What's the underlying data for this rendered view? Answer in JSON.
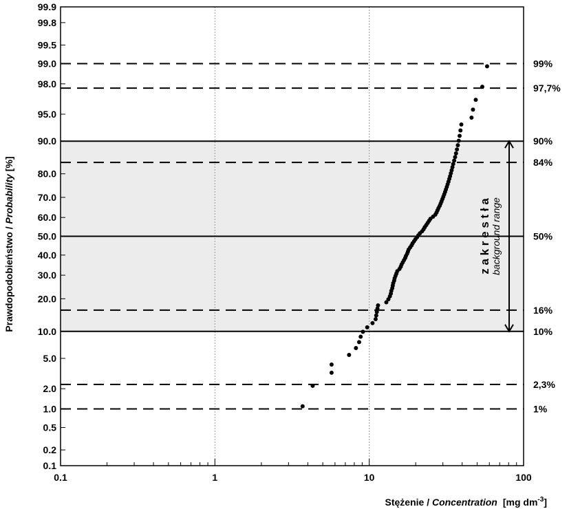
{
  "chart_data": {
    "type": "scatter",
    "xlabel_plain": "Stężenie / ",
    "xlabel_italic": "Concentration",
    "xlabel_unit": "[mg dm",
    "xlabel_unit_sup": "-3",
    "xlabel_unit_end": "]",
    "ylabel_plain": "Prawdopodobieństwo / ",
    "ylabel_italic": "Probability",
    "ylabel_unit": " [%]",
    "x_scale": "log",
    "y_scale": "probability",
    "xlim": [
      0.1,
      100
    ],
    "ylim": [
      0.1,
      99.9
    ],
    "x_ticks": [
      {
        "value": 0.1,
        "label": "0.1"
      },
      {
        "value": 1,
        "label": "1"
      },
      {
        "value": 10,
        "label": "10"
      },
      {
        "value": 100,
        "label": "100"
      }
    ],
    "y_ticks": [
      {
        "value": 0.1,
        "label": "0.1"
      },
      {
        "value": 0.2,
        "label": "0.2"
      },
      {
        "value": 0.5,
        "label": "0.5"
      },
      {
        "value": 1,
        "label": "1.0"
      },
      {
        "value": 2,
        "label": "2.0"
      },
      {
        "value": 5,
        "label": "5.0"
      },
      {
        "value": 10,
        "label": "10.0"
      },
      {
        "value": 20,
        "label": "20.0"
      },
      {
        "value": 30,
        "label": "30.0"
      },
      {
        "value": 40,
        "label": "40.0"
      },
      {
        "value": 50,
        "label": "50.0"
      },
      {
        "value": 60,
        "label": "60.0"
      },
      {
        "value": 70,
        "label": "70.0"
      },
      {
        "value": 80,
        "label": "80.0"
      },
      {
        "value": 90,
        "label": "90.0"
      },
      {
        "value": 95,
        "label": "95.0"
      },
      {
        "value": 98,
        "label": "98.0"
      },
      {
        "value": 99,
        "label": "99.0"
      },
      {
        "value": 99.5,
        "label": "99.5"
      },
      {
        "value": 99.8,
        "label": "99.8"
      },
      {
        "value": 99.9,
        "label": "99.9"
      }
    ],
    "x_gridlines": [
      1,
      10
    ],
    "reference_lines": [
      {
        "p": 99,
        "label": "99%",
        "style": "dashed"
      },
      {
        "p": 97.7,
        "label": "97,7%",
        "style": "dashed"
      },
      {
        "p": 90,
        "label": "90%",
        "style": "solid"
      },
      {
        "p": 84,
        "label": "84%",
        "style": "dashed"
      },
      {
        "p": 50,
        "label": "50%",
        "style": "solid"
      },
      {
        "p": 16,
        "label": "16%",
        "style": "dashed"
      },
      {
        "p": 10,
        "label": "10%",
        "style": "solid"
      },
      {
        "p": 2.3,
        "label": "2,3%",
        "style": "dashed"
      },
      {
        "p": 1,
        "label": "1%",
        "style": "dashed"
      }
    ],
    "shaded_band": {
      "from": 10,
      "to": 90,
      "color": "#ececec"
    },
    "range_annotation": {
      "from": 10,
      "to": 90,
      "label": "z a k r e s   t ł a",
      "sublabel": "background range"
    },
    "series": [
      {
        "color": "#000000",
        "points": [
          [
            3.7,
            1.1
          ],
          [
            4.3,
            2.2
          ],
          [
            5.7,
            3.3
          ],
          [
            5.7,
            4.2
          ],
          [
            7.4,
            5.5
          ],
          [
            8.2,
            6.6
          ],
          [
            8.6,
            7.7
          ],
          [
            8.8,
            8.8
          ],
          [
            9.1,
            9.9
          ],
          [
            9.7,
            11.0
          ],
          [
            10.5,
            12.1
          ],
          [
            11.0,
            13.2
          ],
          [
            11.1,
            14.3
          ],
          [
            11.2,
            15.4
          ],
          [
            11.3,
            16.5
          ],
          [
            11.4,
            17.6
          ],
          [
            12.9,
            18.7
          ],
          [
            13.3,
            19.8
          ],
          [
            13.6,
            20.9
          ],
          [
            13.8,
            22.0
          ],
          [
            13.9,
            23.1
          ],
          [
            14.1,
            24.2
          ],
          [
            14.2,
            25.3
          ],
          [
            14.3,
            26.4
          ],
          [
            14.5,
            27.5
          ],
          [
            14.6,
            28.6
          ],
          [
            14.8,
            29.7
          ],
          [
            15.0,
            30.8
          ],
          [
            15.2,
            31.9
          ],
          [
            15.7,
            33.0
          ],
          [
            16.0,
            34.1
          ],
          [
            16.2,
            35.2
          ],
          [
            16.5,
            36.3
          ],
          [
            16.8,
            37.4
          ],
          [
            17.1,
            38.5
          ],
          [
            17.3,
            39.6
          ],
          [
            17.6,
            40.7
          ],
          [
            17.8,
            41.8
          ],
          [
            18.0,
            42.9
          ],
          [
            18.4,
            44.0
          ],
          [
            18.8,
            45.1
          ],
          [
            19.1,
            46.2
          ],
          [
            19.5,
            47.3
          ],
          [
            19.9,
            48.4
          ],
          [
            20.4,
            49.5
          ],
          [
            20.8,
            50.5
          ],
          [
            21.3,
            51.6
          ],
          [
            22.0,
            52.7
          ],
          [
            22.5,
            53.8
          ],
          [
            22.9,
            54.9
          ],
          [
            23.4,
            56.0
          ],
          [
            23.9,
            57.1
          ],
          [
            24.4,
            58.2
          ],
          [
            24.9,
            59.3
          ],
          [
            25.9,
            60.4
          ],
          [
            26.8,
            61.5
          ],
          [
            27.3,
            62.6
          ],
          [
            27.7,
            63.7
          ],
          [
            28.1,
            64.8
          ],
          [
            28.6,
            65.9
          ],
          [
            29.0,
            67.0
          ],
          [
            29.4,
            68.1
          ],
          [
            29.8,
            69.2
          ],
          [
            30.2,
            70.3
          ],
          [
            30.6,
            71.4
          ],
          [
            31.0,
            72.5
          ],
          [
            31.4,
            73.6
          ],
          [
            31.8,
            74.7
          ],
          [
            32.2,
            75.8
          ],
          [
            32.6,
            76.9
          ],
          [
            33.0,
            78.0
          ],
          [
            33.4,
            79.1
          ],
          [
            33.8,
            80.2
          ],
          [
            34.2,
            81.3
          ],
          [
            34.6,
            82.4
          ],
          [
            35.0,
            83.5
          ],
          [
            35.5,
            84.6
          ],
          [
            36.0,
            85.7
          ],
          [
            36.5,
            86.8
          ],
          [
            37.0,
            87.9
          ],
          [
            37.5,
            89.0
          ],
          [
            38.0,
            90.1
          ],
          [
            38.5,
            91.2
          ],
          [
            39.0,
            92.3
          ],
          [
            39.5,
            93.4
          ],
          [
            46.0,
            94.5
          ],
          [
            47.0,
            95.6
          ],
          [
            49.0,
            96.7
          ],
          [
            54.0,
            97.8
          ],
          [
            58.0,
            98.9
          ]
        ]
      }
    ]
  }
}
